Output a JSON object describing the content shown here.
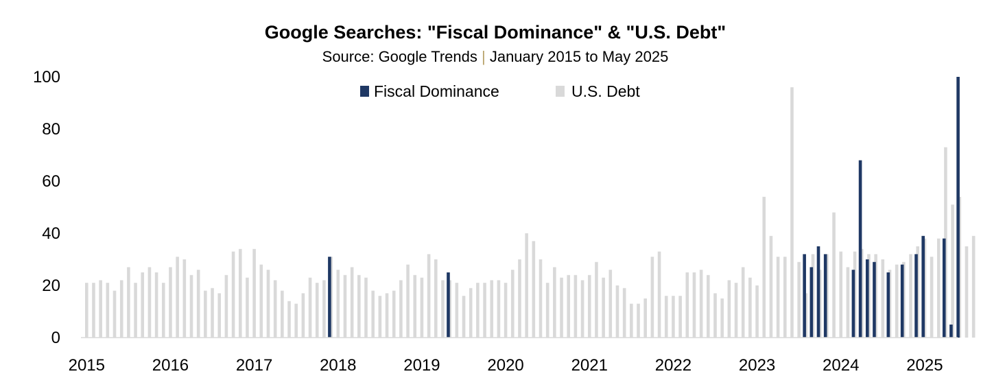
{
  "chart_data": {
    "type": "bar",
    "title": "Google Searches: \"Fiscal Dominance\" & \"U.S. Debt\"",
    "subtitle_parts": [
      "Source: Google Trends ",
      "|",
      " January 2015 to May 2025"
    ],
    "x_tick_labels": [
      "2015",
      "2016",
      "2017",
      "2018",
      "2019",
      "2020",
      "2021",
      "2022",
      "2023",
      "2024",
      "2025"
    ],
    "y_tick_labels": [
      "0",
      "20",
      "40",
      "60",
      "80",
      "100"
    ],
    "ylim": [
      0,
      100
    ],
    "yticks": [
      0,
      20,
      40,
      60,
      80,
      100
    ],
    "xlim": [
      "2015-01",
      "2025-05"
    ],
    "grid": false,
    "legend_position": "top-center",
    "colors": {
      "fiscal_dominance": "#1f3864",
      "us_debt": "#d9d9d9",
      "axis": "#d9d9d9",
      "subtitle_separator": "#b8a26a"
    },
    "series": [
      {
        "name": "Fiscal Dominance",
        "points": [
          [
            "2017-12",
            31
          ],
          [
            "2019-05",
            25
          ],
          [
            "2023-08",
            32
          ],
          [
            "2023-09",
            27
          ],
          [
            "2023-10",
            35
          ],
          [
            "2023-11",
            32
          ],
          [
            "2024-03",
            26
          ],
          [
            "2024-04",
            68
          ],
          [
            "2024-05",
            30
          ],
          [
            "2024-06",
            29
          ],
          [
            "2024-08",
            25
          ],
          [
            "2024-10",
            28
          ],
          [
            "2024-12",
            32
          ],
          [
            "2025-01",
            39
          ],
          [
            "2025-04",
            38
          ],
          [
            "2025-05",
            5
          ],
          [
            "2025-06",
            100
          ]
        ]
      },
      {
        "name": "U.S. Debt",
        "start": "2015-01",
        "values": [
          21,
          21,
          22,
          21,
          18,
          22,
          27,
          21,
          25,
          27,
          25,
          21,
          27,
          31,
          30,
          24,
          26,
          18,
          19,
          17,
          24,
          33,
          34,
          23,
          34,
          28,
          26,
          22,
          18,
          14,
          13,
          17,
          23,
          21,
          22,
          31,
          26,
          24,
          27,
          24,
          23,
          18,
          16,
          17,
          18,
          22,
          28,
          24,
          23,
          32,
          30,
          22,
          22,
          21,
          16,
          19,
          21,
          21,
          22,
          22,
          21,
          26,
          30,
          40,
          37,
          30,
          21,
          27,
          23,
          24,
          24,
          22,
          24,
          29,
          23,
          26,
          20,
          19,
          13,
          13,
          15,
          31,
          33,
          16,
          16,
          16,
          25,
          25,
          26,
          24,
          17,
          15,
          22,
          21,
          27,
          23,
          20,
          54,
          39,
          31,
          31,
          96,
          29,
          17,
          32,
          26,
          32,
          48,
          33,
          27,
          33,
          34,
          32,
          32,
          30,
          26,
          28,
          29,
          32,
          35,
          38,
          31,
          38,
          73,
          51,
          54,
          35,
          39
        ]
      }
    ]
  }
}
